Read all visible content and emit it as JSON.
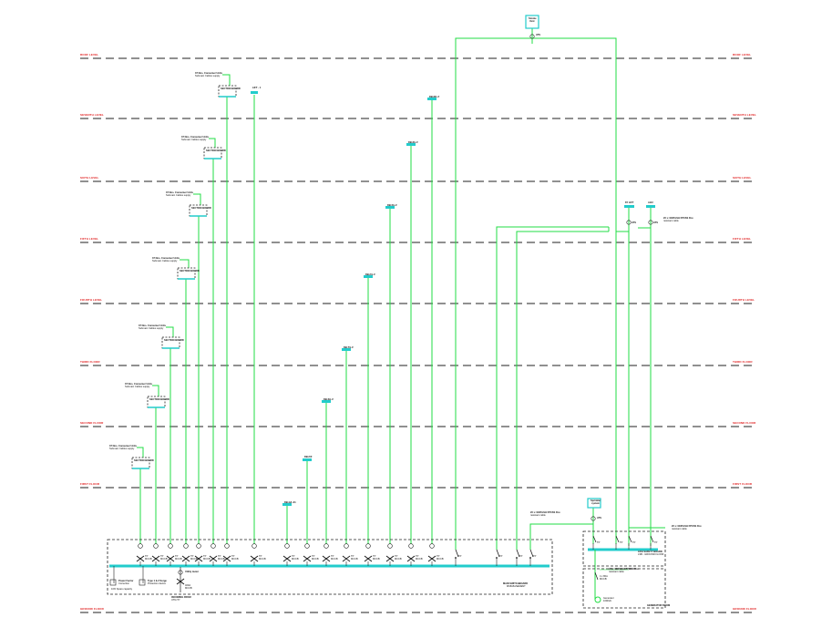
{
  "levels": [
    {
      "label": "ROOF LEVEL"
    },
    {
      "label": "SEVENTH LEVEL"
    },
    {
      "label": "SIXTH LEVEL"
    },
    {
      "label": "FIFTH LEVEL"
    },
    {
      "label": "FOURTH LEVEL"
    },
    {
      "label": "THIRD FLOOR"
    },
    {
      "label": "SECOND FLOOR"
    },
    {
      "label": "FIRST FLOOR"
    },
    {
      "label": "GROUND FLOOR"
    }
  ],
  "supply_note": {
    "line1": "37 Nos. Consumer Units",
    "line2": "Submain Cables supply"
  },
  "section_boards": [
    {
      "label": "SECTION BOARD"
    },
    {
      "label": "SECTION BOARD"
    },
    {
      "label": "SECTION BOARD"
    },
    {
      "label": "SECTION BOARD"
    },
    {
      "label": "SECTION BOARD"
    },
    {
      "label": "SECTION BOARD"
    },
    {
      "label": "SECTION BOARD"
    }
  ],
  "distribution_boards": [
    {
      "label": "DB-G/L-01"
    },
    {
      "label": "DB-F/F"
    },
    {
      "label": "DB-S/L-F"
    },
    {
      "label": "DB-T/L-F"
    },
    {
      "label": "DB-F/L-F"
    },
    {
      "label": "DB-5/L-F"
    },
    {
      "label": "DB-6/L-F"
    },
    {
      "label": "DB-R/L-F"
    }
  ],
  "lift": {
    "label": "LIFT - 1"
  },
  "smoke_vent": {
    "line1": "Smoke",
    "line2": "Vent"
  },
  "sprinkler": {
    "line1": "Sprinkler",
    "line2": "system"
  },
  "fire_lift": {
    "label": "FF LIFT"
  },
  "ahu": {
    "label": "AHU"
  },
  "ats_label": "ATS",
  "fire_cable_note": {
    "line1": "2C x 10/35LSH FPCSS Fire",
    "line2": "resistant cable"
  },
  "main_switchboard": {
    "line1": "MAIN SWITCHBOARD",
    "line2": "MSB-BASEMENT"
  },
  "life_safety_board": {
    "line1": "LIFE SAFETY BOARD",
    "line2": "LSB - GROUND FLOOR"
  },
  "generator_room": {
    "label": "GENERATOR ROOM"
  },
  "generator": {
    "line1": "Generator",
    "line2": "100kVA"
  },
  "generator_cb": {
    "line1": "4 x 80A",
    "line2": "MCCB"
  },
  "utility": {
    "label": "Utility meter"
  },
  "supply_cb": {
    "line1": "400A",
    "line2": "MCCB"
  },
  "incoming_supply": {
    "line1": "INCOMING FROM",
    "line2": "UTILITY"
  },
  "pfc": {
    "line1": "Power Factor",
    "line2": "Correction",
    "line3": "10% Spare capacity"
  },
  "spd": {
    "line1": "Type 1 & 2 Surge",
    "line2": "Protection device"
  },
  "feeder_breaker": {
    "line1": "TP",
    "line2": "MCCB"
  },
  "colors": {
    "line": "#22dd44",
    "device": "#22cccc",
    "level": "#e02020",
    "dash": "#222222"
  }
}
